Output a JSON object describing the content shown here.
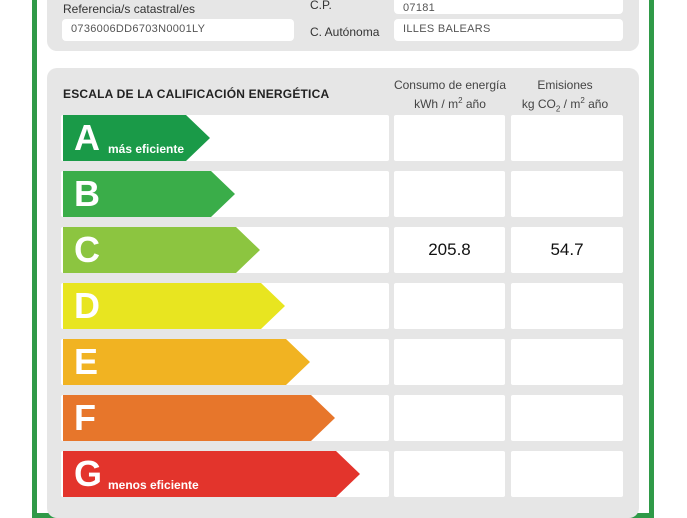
{
  "header": {
    "referencia_label": "Referencia/s catastral/es",
    "referencia_value": "0736006DD6703N0001LY",
    "cp_label": "C.P.",
    "cp_value": "07181",
    "autonoma_label": "C. Autónoma",
    "autonoma_value": "ILLES BALEARS"
  },
  "scale": {
    "title": "ESCALA DE LA CALIFICACIÓN ENERGÉTICA",
    "consumo_header_line1": "Consumo de energía",
    "consumo_header_line2_pre": "kWh / m",
    "consumo_header_line2_sup": "2",
    "consumo_header_line2_post": " año",
    "emisiones_header_line1": "Emisiones",
    "emisiones_header_line2_pre": "kg CO",
    "emisiones_header_line2_sub": "2",
    "emisiones_header_line2_mid": " / m",
    "emisiones_header_line2_sup": "2",
    "emisiones_header_line2_post": " año",
    "ratings": [
      {
        "letter": "A",
        "sublabel": "más eficiente",
        "color": "#1a9a48",
        "consumo": "",
        "emisiones": ""
      },
      {
        "letter": "B",
        "sublabel": "",
        "color": "#3aad49",
        "consumo": "",
        "emisiones": ""
      },
      {
        "letter": "C",
        "sublabel": "",
        "color": "#8cc540",
        "consumo": "205.8",
        "emisiones": "54.7"
      },
      {
        "letter": "D",
        "sublabel": "",
        "color": "#e8e520",
        "consumo": "",
        "emisiones": ""
      },
      {
        "letter": "E",
        "sublabel": "",
        "color": "#f1b322",
        "consumo": "",
        "emisiones": ""
      },
      {
        "letter": "F",
        "sublabel": "",
        "color": "#e7762b",
        "consumo": "",
        "emisiones": ""
      },
      {
        "letter": "G",
        "sublabel": "menos eficiente",
        "color": "#e3342c",
        "consumo": "",
        "emisiones": ""
      }
    ]
  }
}
